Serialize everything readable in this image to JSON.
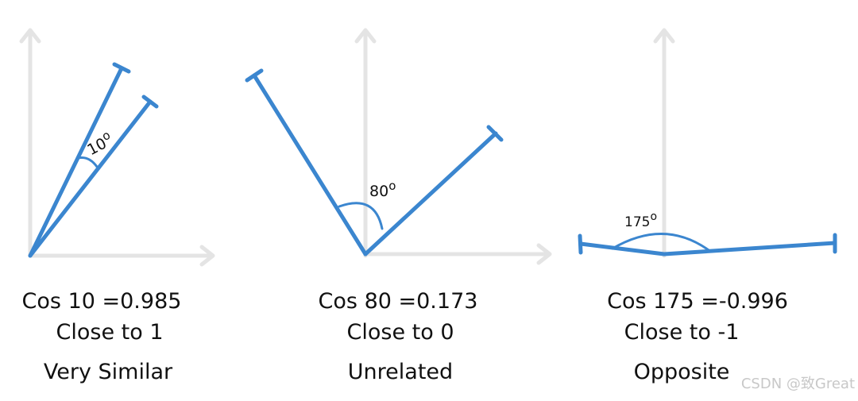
{
  "panels": [
    {
      "angle_label": "10",
      "degree_mark": "o",
      "cos_text": "Cos 10 =0.985",
      "close_text": "Close to 1",
      "meaning_text": "Very Similar"
    },
    {
      "angle_label": "80",
      "degree_mark": "o",
      "cos_text": "Cos 80 =0.173",
      "close_text": "Close to 0",
      "meaning_text": "Unrelated"
    },
    {
      "angle_label": "175",
      "degree_mark": "o",
      "cos_text": "Cos 175 =-0.996",
      "close_text": "Close to -1",
      "meaning_text": "Opposite"
    }
  ],
  "watermark": "CSDN @致Great",
  "colors": {
    "vector": "#3b86cf",
    "axis": "#e4e4e4",
    "text": "#111111",
    "watermark": "#c8c8c8"
  }
}
